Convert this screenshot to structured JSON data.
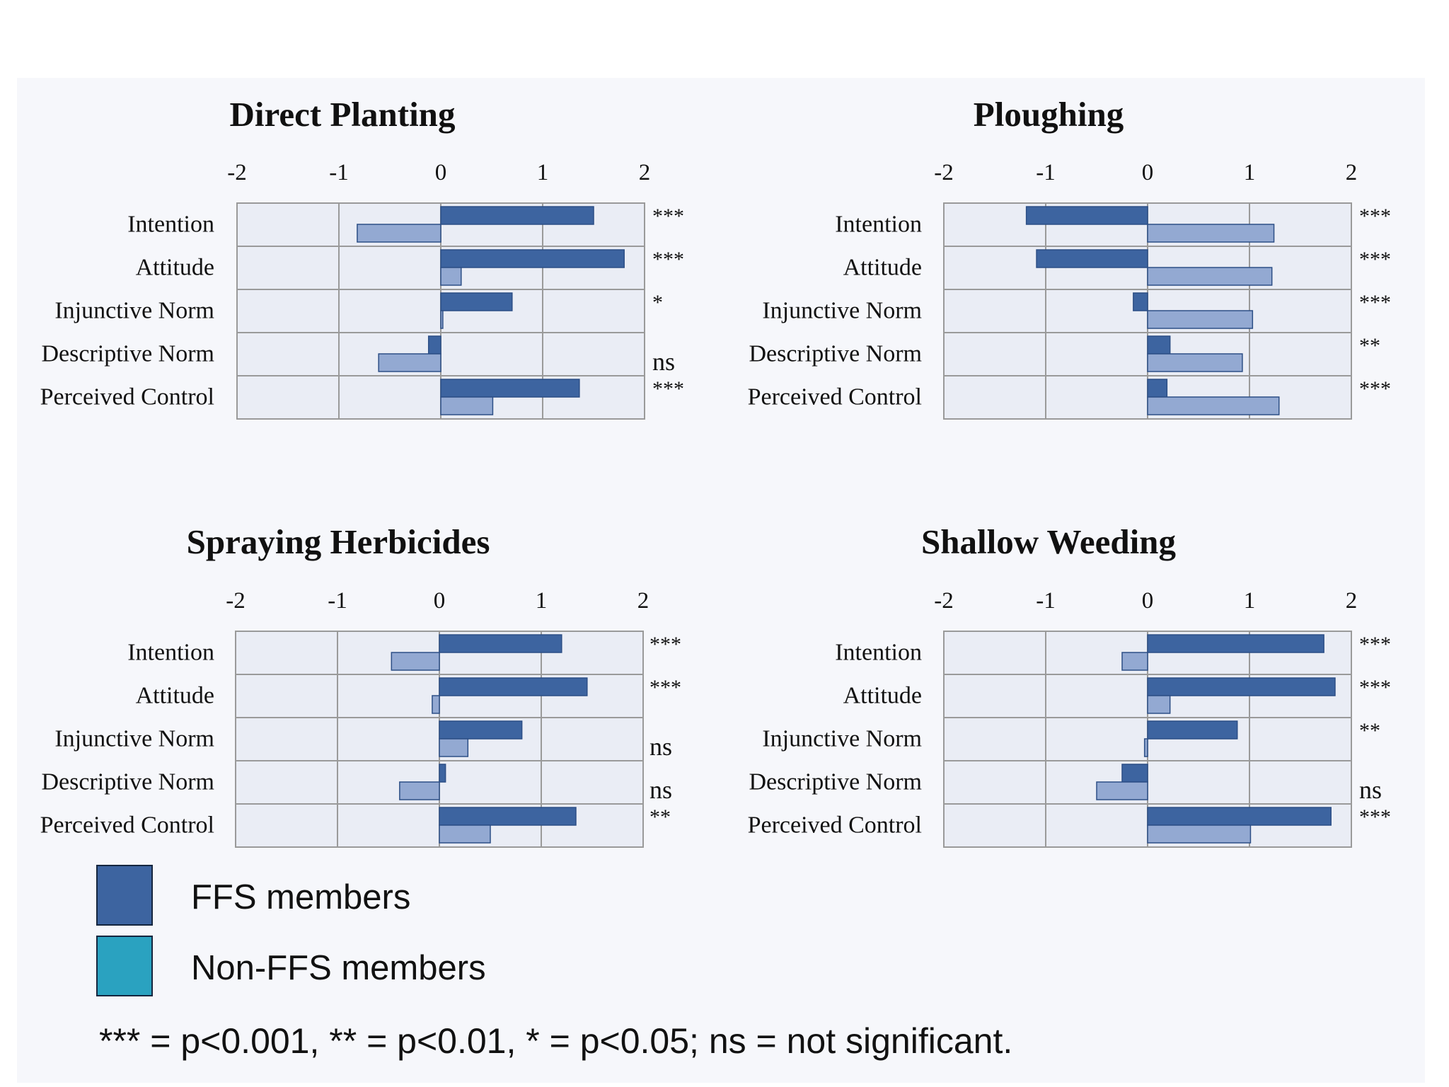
{
  "colors": {
    "ffs": "#3d64a0",
    "nonffs_bar": "#93a9d2",
    "nonffs_legend": "#2aa2c0",
    "plot_bg": "#eaedf5",
    "grid": "#9a9a9a"
  },
  "chart_data": [
    {
      "type": "bar",
      "orientation": "horizontal",
      "title": "Direct Planting",
      "categories": [
        "Intention",
        "Attitude",
        "Injunctive Norm",
        "Descriptive Norm",
        "Perceived Control"
      ],
      "series": [
        {
          "name": "FFS members",
          "values": [
            1.5,
            1.8,
            0.7,
            -0.12,
            1.36
          ]
        },
        {
          "name": "Non-FFS members",
          "values": [
            -0.82,
            0.2,
            0.02,
            -0.61,
            0.51
          ]
        }
      ],
      "significance": [
        "***",
        "***",
        "*",
        "ns",
        "***"
      ],
      "xlim": [
        -2,
        2
      ],
      "xticks": [
        "-2",
        "-1",
        "0",
        "1",
        "2"
      ]
    },
    {
      "type": "bar",
      "orientation": "horizontal",
      "title": "Ploughing",
      "categories": [
        "Intention",
        "Attitude",
        "Injunctive Norm",
        "Descriptive Norm",
        "Perceived Control"
      ],
      "series": [
        {
          "name": "FFS members",
          "values": [
            -1.19,
            -1.09,
            -0.14,
            0.22,
            0.19
          ]
        },
        {
          "name": "Non-FFS members",
          "values": [
            1.24,
            1.22,
            1.03,
            0.93,
            1.29
          ]
        }
      ],
      "significance": [
        "***",
        "***",
        "***",
        "**",
        "***"
      ],
      "xlim": [
        -2,
        2
      ],
      "xticks": [
        "-2",
        "-1",
        "0",
        "1",
        "2"
      ]
    },
    {
      "type": "bar",
      "orientation": "horizontal",
      "title": "Spraying Herbicides",
      "categories": [
        "Intention",
        "Attitude",
        "Injunctive Norm",
        "Descriptive Norm",
        "Perceived Control"
      ],
      "series": [
        {
          "name": "FFS members",
          "values": [
            1.2,
            1.45,
            0.81,
            0.06,
            1.34
          ]
        },
        {
          "name": "Non-FFS members",
          "values": [
            -0.47,
            -0.07,
            0.28,
            -0.39,
            0.5
          ]
        }
      ],
      "significance": [
        "***",
        "***",
        "ns",
        "ns",
        "**"
      ],
      "xlim": [
        -2,
        2
      ],
      "xticks": [
        "-2",
        "-1",
        "0",
        "1",
        "2"
      ]
    },
    {
      "type": "bar",
      "orientation": "horizontal",
      "title": "Shallow Weeding",
      "categories": [
        "Intention",
        "Attitude",
        "Injunctive Norm",
        "Descriptive Norm",
        "Perceived Control"
      ],
      "series": [
        {
          "name": "FFS members",
          "values": [
            1.73,
            1.84,
            0.88,
            -0.25,
            1.8
          ]
        },
        {
          "name": "Non-FFS members",
          "values": [
            -0.25,
            0.22,
            -0.03,
            -0.5,
            1.01
          ]
        }
      ],
      "significance": [
        "***",
        "***",
        "**",
        "ns",
        "***"
      ],
      "xlim": [
        -2,
        2
      ],
      "xticks": [
        "-2",
        "-1",
        "0",
        "1",
        "2"
      ]
    }
  ],
  "legend": {
    "items": [
      {
        "label": "FFS members",
        "color": "#3d64a0"
      },
      {
        "label": "Non-FFS members",
        "color": "#2aa2c0"
      }
    ]
  },
  "footnote": "*** = p<0.001, ** = p<0.01, * = p<0.05; ns = not significant."
}
